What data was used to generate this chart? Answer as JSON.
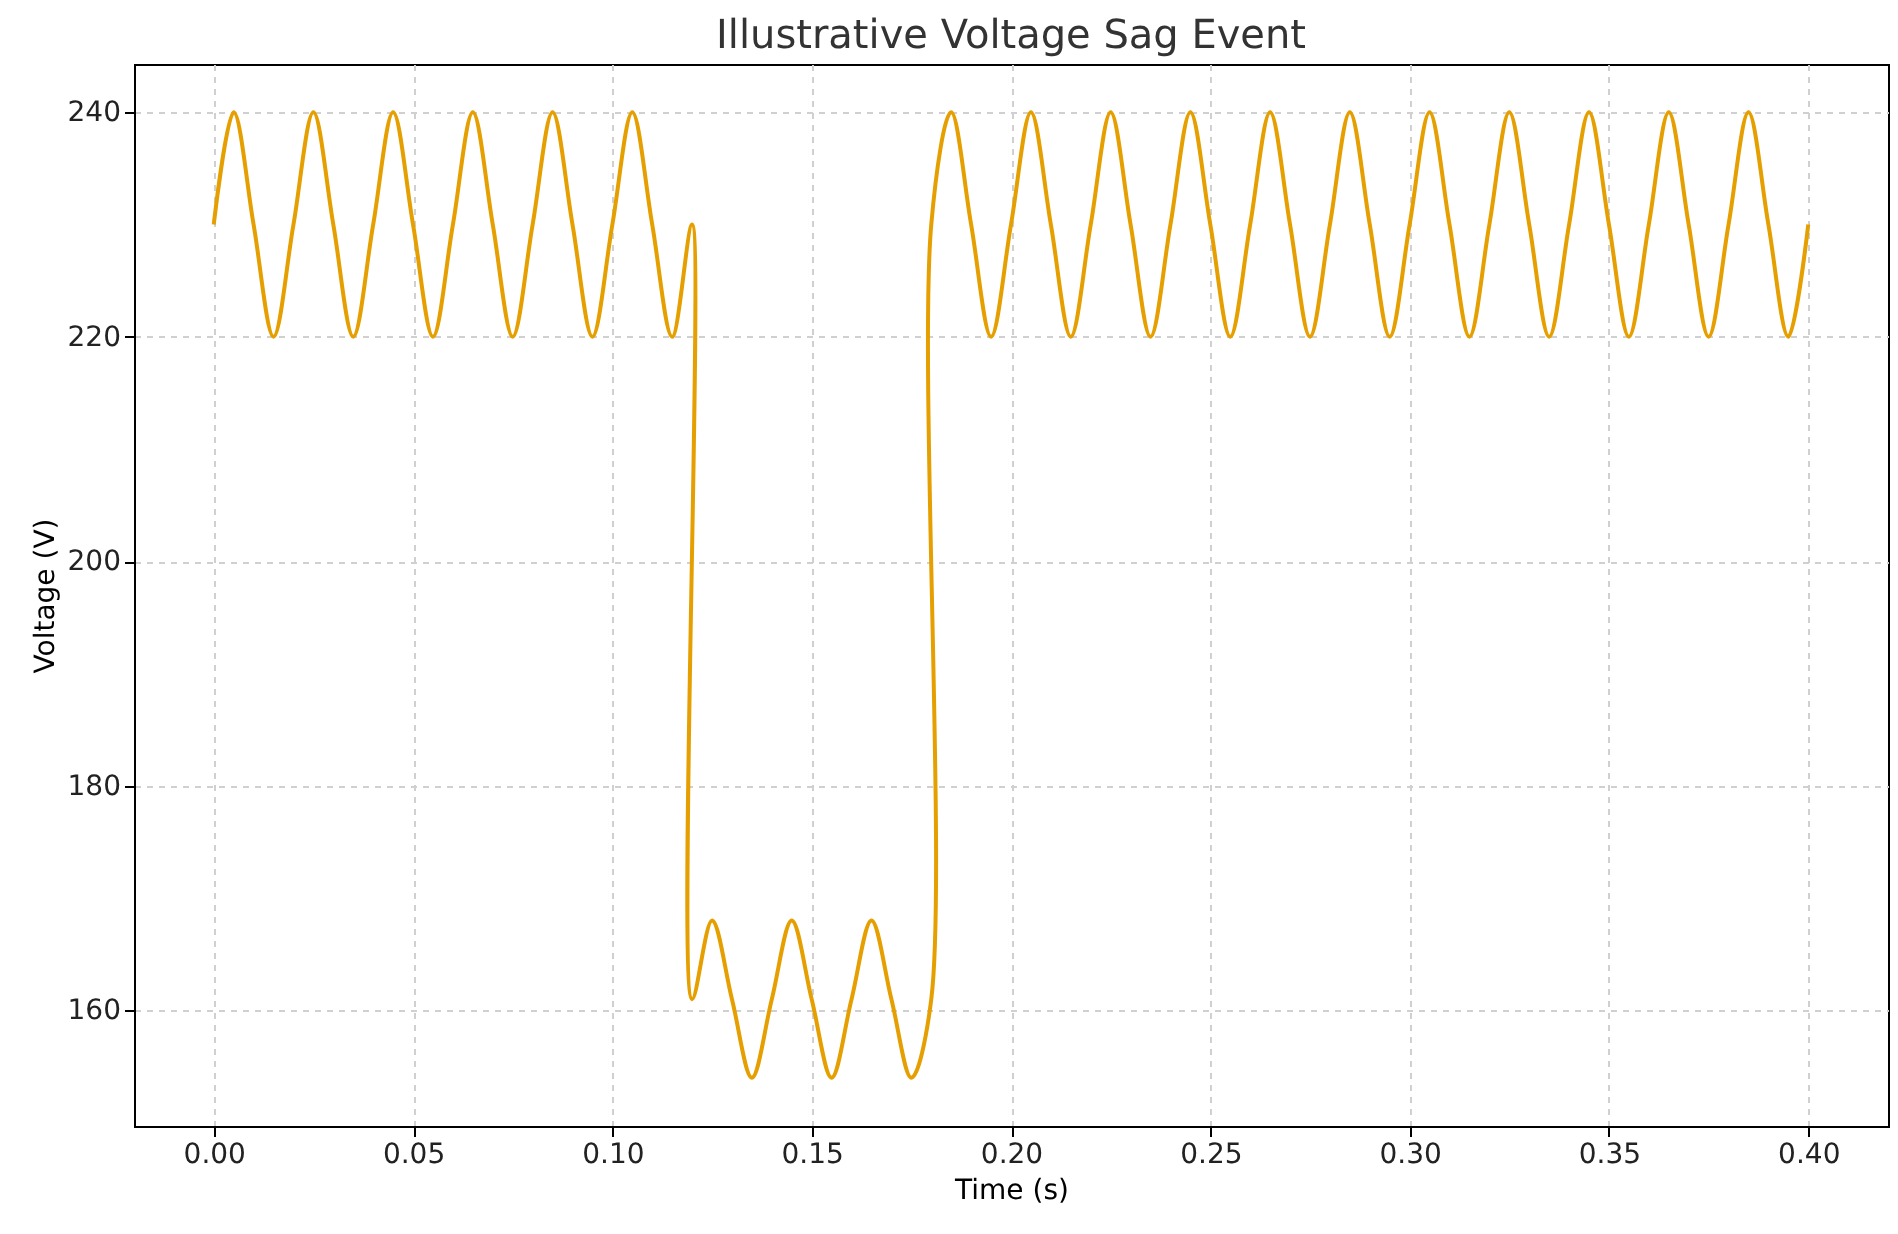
{
  "chart_data": {
    "type": "line",
    "title": "Illustrative Voltage Sag Event",
    "xlabel": "Time (s)",
    "ylabel": "Voltage (V)",
    "x": [
      0,
      0.005,
      0.01,
      0.015,
      0.02,
      0.025,
      0.03,
      0.035,
      0.04,
      0.045,
      0.05,
      0.055,
      0.06,
      0.065,
      0.07,
      0.075,
      0.08,
      0.085,
      0.09,
      0.095,
      0.1,
      0.105,
      0.11,
      0.115,
      0.12,
      0.12,
      0.125,
      0.13,
      0.135,
      0.14,
      0.145,
      0.15,
      0.155,
      0.16,
      0.165,
      0.17,
      0.175,
      0.18,
      0.18,
      0.185,
      0.19,
      0.195,
      0.2,
      0.205,
      0.21,
      0.215,
      0.22,
      0.225,
      0.23,
      0.235,
      0.24,
      0.245,
      0.25,
      0.255,
      0.26,
      0.265,
      0.27,
      0.275,
      0.28,
      0.285,
      0.29,
      0.295,
      0.3,
      0.305,
      0.31,
      0.315,
      0.32,
      0.325,
      0.33,
      0.335,
      0.34,
      0.345,
      0.35,
      0.355,
      0.36,
      0.365,
      0.37,
      0.375,
      0.38,
      0.385,
      0.39,
      0.395,
      0.4
    ],
    "series": [
      {
        "color": "#e69f00",
        "values": [
          230,
          240,
          230,
          220,
          230,
          240,
          230,
          220,
          230,
          240,
          230,
          220,
          230,
          240,
          230,
          220,
          230,
          240,
          230,
          220,
          230,
          240,
          230,
          220,
          230,
          161,
          168,
          161,
          154,
          161,
          168,
          161,
          154,
          161,
          168,
          161,
          154,
          161,
          230,
          240,
          230,
          220,
          230,
          240,
          230,
          220,
          230,
          240,
          230,
          220,
          230,
          240,
          230,
          220,
          230,
          240,
          230,
          220,
          230,
          240,
          230,
          220,
          230,
          240,
          230,
          220,
          230,
          240,
          230,
          220,
          230,
          240,
          230,
          220,
          230,
          240,
          230,
          220,
          230,
          240,
          230,
          220,
          230
        ]
      }
    ],
    "xlim": [
      -0.02,
      0.42
    ],
    "ylim": [
      149.7,
      244.3
    ],
    "xticks": [
      {
        "value": 0,
        "label": "0.00"
      },
      {
        "value": 0.05,
        "label": "0.05"
      },
      {
        "value": 0.1,
        "label": "0.10"
      },
      {
        "value": 0.15,
        "label": "0.15"
      },
      {
        "value": 0.2,
        "label": "0.20"
      },
      {
        "value": 0.25,
        "label": "0.25"
      },
      {
        "value": 0.3,
        "label": "0.30"
      },
      {
        "value": 0.35,
        "label": "0.35"
      },
      {
        "value": 0.4,
        "label": "0.40"
      }
    ],
    "yticks": [
      160,
      180,
      200,
      220,
      240
    ],
    "grid": true,
    "line_style": "solid"
  }
}
